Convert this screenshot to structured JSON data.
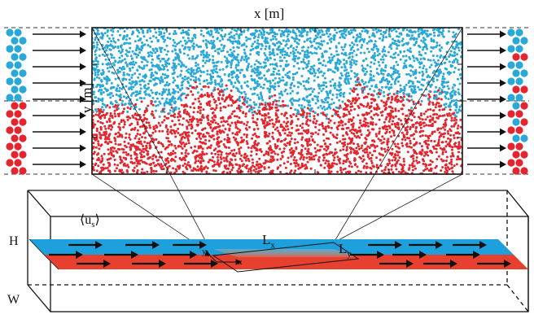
{
  "labels": {
    "x_axis": "x [m]",
    "y_axis": "y [m]",
    "height": "H",
    "width": "W",
    "us_main": "⟨u",
    "us_sub": "s",
    "us_close": "⟩",
    "lx_main": "L",
    "lx_sub": "x",
    "ly_main": "L",
    "ly_sub": "y",
    "axis_y_small": "y",
    "axis_x_small": "x"
  },
  "colors": {
    "species_upper": "#2aa8d8",
    "species_lower": "#e3262e",
    "slab_upper": "#1ea0dc",
    "slab_lower": "#e8402e",
    "line": "#111111"
  },
  "icons": {
    "flow_arrow": "right-arrow-icon",
    "particle": "disk-icon"
  }
}
